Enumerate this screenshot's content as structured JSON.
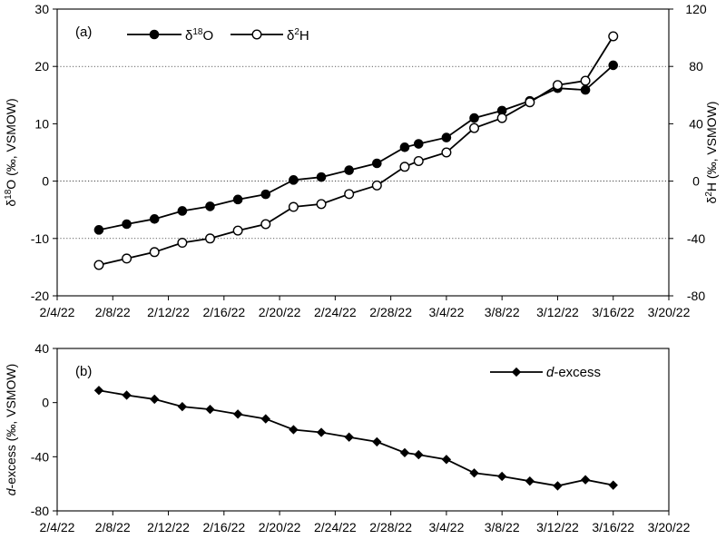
{
  "chart_data": [
    {
      "panel": "(a)",
      "type": "line",
      "x_ticks": [
        "2/4/22",
        "2/8/22",
        "2/12/22",
        "2/16/22",
        "2/20/22",
        "2/24/22",
        "2/28/22",
        "3/4/22",
        "3/8/22",
        "3/12/22",
        "3/16/22",
        "3/20/22"
      ],
      "xlim": [
        "2/4/22",
        "3/20/22"
      ],
      "x": [
        "2/7/22",
        "2/9/22",
        "2/11/22",
        "2/13/22",
        "2/15/22",
        "2/17/22",
        "2/19/22",
        "2/21/22",
        "2/23/22",
        "2/25/22",
        "2/27/22",
        "2/29/22",
        "3/2/22",
        "3/4/22",
        "3/6/22",
        "3/8/22",
        "3/10/22",
        "3/12/22",
        "3/14/22",
        "3/16/22"
      ],
      "ylabel_left": {
        "pre": "δ",
        "sup": "18",
        "post": "O (‰, VSMOW)"
      },
      "ylabel_right": {
        "pre": "δ",
        "sup": "2",
        "post": "H (‰, VSMOW)"
      },
      "ylim_left": [
        -20,
        30
      ],
      "yticks_left": [
        -20,
        -10,
        0,
        10,
        20,
        30
      ],
      "ylim_right": [
        -80,
        120
      ],
      "yticks_right": [
        -80,
        -40,
        0,
        40,
        80,
        120
      ],
      "grid": "horizontal dotted at 20, 0, -10",
      "legend_position": "top-left",
      "series": [
        {
          "name_pre": "δ",
          "name_sup": "18",
          "name_post": "O",
          "axis": "left",
          "marker": "filled-circle",
          "color": "#000000",
          "values": [
            -8.5,
            -7.5,
            -6.6,
            -5.2,
            -4.4,
            -3.2,
            -2.3,
            0.2,
            0.7,
            1.9,
            3.1,
            5.9,
            6.5,
            7.6,
            11.0,
            12.3,
            14.0,
            16.2,
            15.9,
            20.2
          ]
        },
        {
          "name_pre": "δ",
          "name_sup": "2",
          "name_post": "H",
          "axis": "right",
          "marker": "open-circle",
          "color": "#000000",
          "values": [
            -58.5,
            -54.0,
            -49.5,
            -43.0,
            -40.0,
            -34.5,
            -30.0,
            -18.0,
            -16.0,
            -9.0,
            -3.0,
            10.0,
            14.0,
            20.0,
            37.0,
            44.0,
            55.0,
            67.0,
            70.0,
            101.0
          ]
        }
      ]
    },
    {
      "panel": "(b)",
      "type": "line",
      "x_ticks": [
        "2/4/22",
        "2/8/22",
        "2/12/22",
        "2/16/22",
        "2/20/22",
        "2/24/22",
        "2/28/22",
        "3/4/22",
        "3/8/22",
        "3/12/22",
        "3/16/22",
        "3/20/22"
      ],
      "xlim": [
        "2/4/22",
        "3/20/22"
      ],
      "x": [
        "2/7/22",
        "2/9/22",
        "2/11/22",
        "2/13/22",
        "2/15/22",
        "2/17/22",
        "2/19/22",
        "2/21/22",
        "2/23/22",
        "2/25/22",
        "2/27/22",
        "2/29/22",
        "3/2/22",
        "3/4/22",
        "3/6/22",
        "3/8/22",
        "3/10/22",
        "3/12/22",
        "3/14/22",
        "3/16/22"
      ],
      "ylabel": {
        "italic": "d",
        "post": "-excess (‰, VSMOW)"
      },
      "ylim": [
        -80,
        40
      ],
      "yticks": [
        -80,
        -40,
        0,
        40
      ],
      "legend_position": "top-right",
      "series": [
        {
          "name_italic": "d",
          "name_post": "-excess",
          "marker": "filled-diamond",
          "color": "#000000",
          "values": [
            9.0,
            5.5,
            2.5,
            -3.0,
            -5.0,
            -8.5,
            -12.0,
            -20.0,
            -22.0,
            -25.5,
            -29.0,
            -37.0,
            -38.5,
            -42.0,
            -52.0,
            -54.5,
            -58.0,
            -61.5,
            -57.0,
            -61.0
          ]
        }
      ]
    }
  ]
}
